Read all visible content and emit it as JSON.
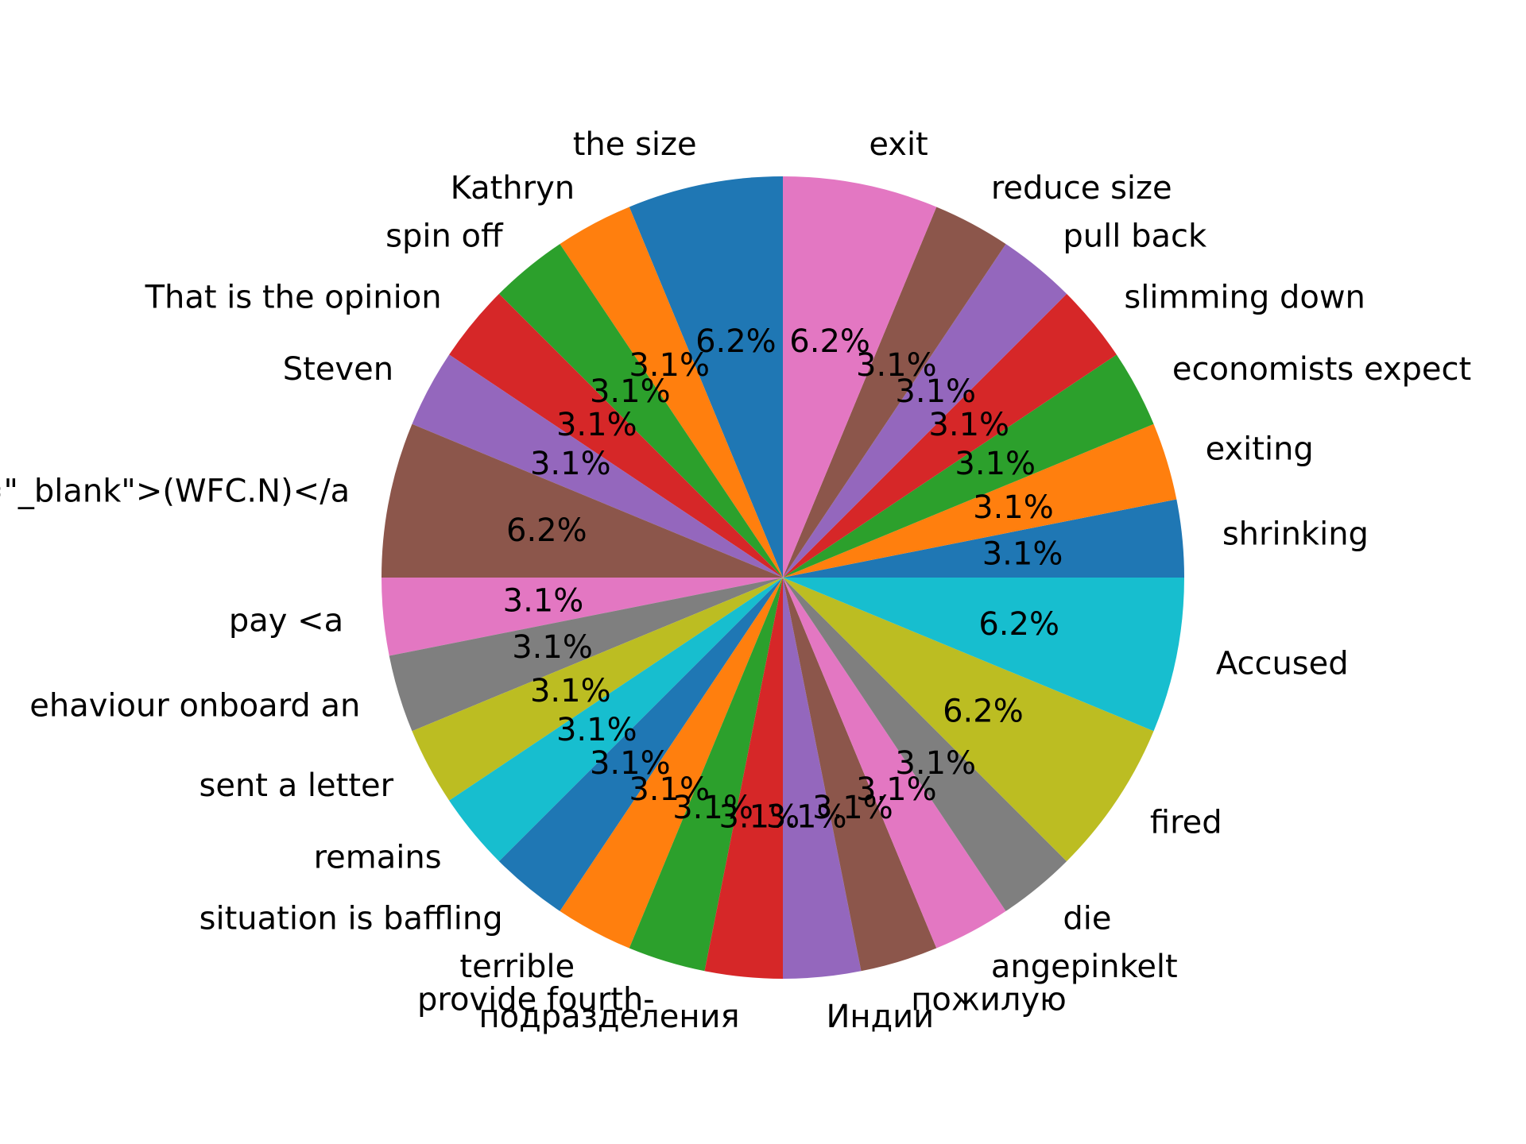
{
  "chart_data": {
    "type": "pie",
    "start_angle_deg": 90,
    "direction": "counterclockwise",
    "colors": [
      "#1f77b4",
      "#ff7f0e",
      "#2ca02c",
      "#d62728",
      "#9467bd",
      "#8c564b",
      "#e377c2",
      "#7f7f7f",
      "#bcbd22",
      "#17becf"
    ],
    "categories": [
      "the size",
      "Kathryn",
      "spin off",
      "That is the opinion",
      "Steven",
      "t=\"_blank\">(WFC.N)</a",
      "pay <a",
      "ehaviour onboard an",
      "sent a letter",
      "remains",
      "situation is baffling",
      "terrible",
      "provide fourth-",
      "подразделения",
      "Индии",
      "пожилую",
      "angepinkelt",
      "die",
      "fired",
      "Accused",
      "shrinking",
      "exiting",
      "economists expect",
      "slimming down",
      "pull back",
      "reduce size",
      "exit"
    ],
    "values": [
      2,
      1,
      1,
      1,
      1,
      2,
      1,
      1,
      1,
      1,
      1,
      1,
      1,
      1,
      1,
      1,
      1,
      1,
      2,
      2,
      1,
      1,
      1,
      1,
      1,
      1,
      2
    ],
    "percent_labels": [
      "6.2%",
      "3.1%",
      "3.1%",
      "3.1%",
      "3.1%",
      "6.2%",
      "3.1%",
      "3.1%",
      "3.1%",
      "3.1%",
      "3.1%",
      "3.1%",
      "3.1%",
      "3.1%",
      "3.1%",
      "3.1%",
      "3.1%",
      "3.1%",
      "6.2%",
      "6.2%",
      "3.1%",
      "3.1%",
      "3.1%",
      "3.1%",
      "3.1%",
      "3.1%",
      "6.2%"
    ]
  }
}
